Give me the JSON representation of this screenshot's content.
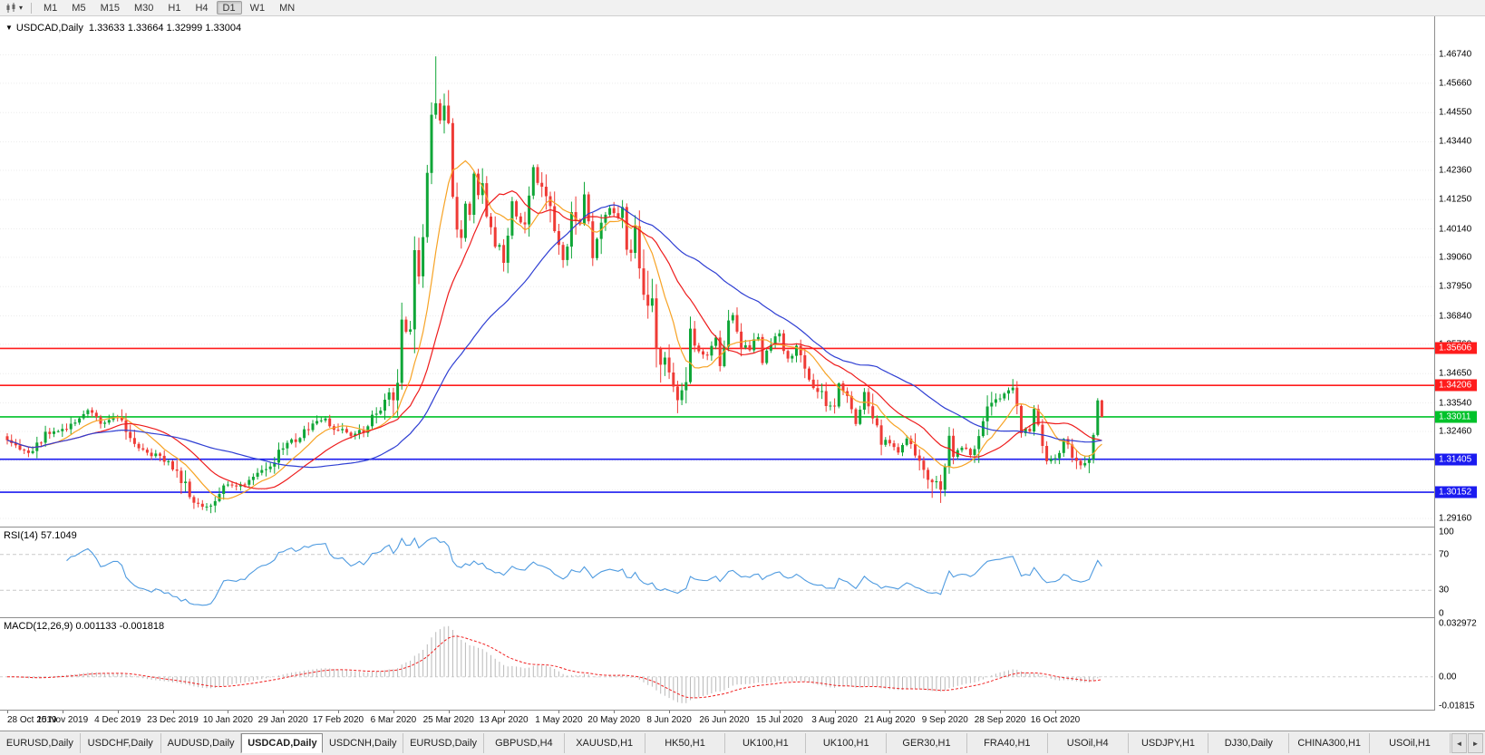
{
  "toolbar": {
    "dropdown_arrow": "▾",
    "timeframes": [
      "M1",
      "M5",
      "M15",
      "M30",
      "H1",
      "H4",
      "D1",
      "W1",
      "MN"
    ],
    "active_timeframe": "D1"
  },
  "chart_header": {
    "collapse_icon": "▼",
    "symbol": "USDCAD,Daily",
    "ohlc": "1.33633 1.33664 1.32999 1.33004"
  },
  "price_axis_labels": [
    "1.46740",
    "1.45660",
    "1.44550",
    "1.43440",
    "1.42360",
    "1.41250",
    "1.40140",
    "1.39060",
    "1.37950",
    "1.36840",
    "1.35760",
    "1.34650",
    "1.33540",
    "1.32460",
    "1.31350",
    "1.30240",
    "1.29160"
  ],
  "date_axis_labels": [
    "28 Oct 2019",
    "15 Nov 2019",
    "4 Dec 2019",
    "23 Dec 2019",
    "10 Jan 2020",
    "29 Jan 2020",
    "17 Feb 2020",
    "6 Mar 2020",
    "25 Mar 2020",
    "13 Apr 2020",
    "1 May 2020",
    "20 May 2020",
    "8 Jun 2020",
    "26 Jun 2020",
    "15 Jul 2020",
    "3 Aug 2020",
    "21 Aug 2020",
    "9 Sep 2020",
    "28 Sep 2020",
    "16 Oct 2020"
  ],
  "indicators": {
    "rsi": {
      "label": "RSI(14) 57.1049",
      "levels": [
        "100",
        "70",
        "30",
        "0"
      ]
    },
    "macd": {
      "label": "MACD(12,26,9) 0.001133 -0.001818",
      "axis_labels": [
        "0.032972",
        "0.00",
        "-0.01815"
      ]
    }
  },
  "tabs": {
    "scroll_left": "◄",
    "scroll_right": "►",
    "items": [
      {
        "label": "EURUSD,Daily",
        "active": false
      },
      {
        "label": "USDCHF,Daily",
        "active": false
      },
      {
        "label": "AUDUSD,Daily",
        "active": false
      },
      {
        "label": "USDCAD,Daily",
        "active": true
      },
      {
        "label": "USDCNH,Daily",
        "active": false
      },
      {
        "label": "EURUSD,Daily",
        "active": false
      },
      {
        "label": "GBPUSD,H4",
        "active": false
      },
      {
        "label": "XAUUSD,H1",
        "active": false
      },
      {
        "label": "HK50,H1",
        "active": false
      },
      {
        "label": "UK100,H1",
        "active": false
      },
      {
        "label": "UK100,H1",
        "active": false
      },
      {
        "label": "GER30,H1",
        "active": false
      },
      {
        "label": "FRA40,H1",
        "active": false
      },
      {
        "label": "USOil,H4",
        "active": false
      },
      {
        "label": "USDJPY,H1",
        "active": false
      },
      {
        "label": "DJ30,Daily",
        "active": false
      },
      {
        "label": "CHINA300,H1",
        "active": false
      },
      {
        "label": "USOil,H1",
        "active": false
      }
    ]
  },
  "chart_data": {
    "type": "candlestick",
    "symbol": "USDCAD",
    "timeframe": "Daily",
    "bars": 259,
    "last_ohlc": {
      "open": 1.33633,
      "high": 1.33664,
      "low": 1.32999,
      "close": 1.33004
    },
    "price_range": {
      "top": 1.482,
      "bottom": 1.2885
    },
    "candle_up_color": "#0fa637",
    "candle_down_color": "#ef3b36",
    "horizontal_lines": [
      {
        "price": 1.35606,
        "label": "1.35606",
        "color": "#ff1c1c"
      },
      {
        "price": 1.34206,
        "label": "1.34206",
        "color": "#ff1c1c"
      },
      {
        "price": 1.33011,
        "label": "1.33011",
        "color": "#00c22a"
      },
      {
        "price": 1.31405,
        "label": "1.31405",
        "color": "#1b1bf0"
      },
      {
        "price": 1.30152,
        "label": "1.30152",
        "color": "#1b1bf0"
      }
    ],
    "moving_averages": [
      {
        "period": 10,
        "color": "#f7a325"
      },
      {
        "period": 21,
        "color": "#ee1c1c"
      },
      {
        "period": 45,
        "color": "#2f3fd3"
      }
    ],
    "rsi": {
      "period": 14,
      "value": 57.1049,
      "levels": [
        70,
        30
      ],
      "color": "#4f9be0",
      "level_color": "#c9c9c9"
    },
    "macd": {
      "fast": 12,
      "slow": 26,
      "signal": 9,
      "value": 0.001133,
      "signal_value": -0.001818,
      "plot_max": 0.0365,
      "plot_min": -0.0205,
      "hist_color": "#b9b9b9",
      "signal_color": "#f02020"
    },
    "forced_wicks": [
      {
        "index": 101,
        "type": "high",
        "price": 1.4668
      },
      {
        "index": 46,
        "type": "low",
        "price": 1.2948
      },
      {
        "index": 158,
        "type": "low",
        "price": 1.3315
      },
      {
        "index": 218,
        "type": "low",
        "price": 1.2994
      }
    ],
    "close_waypoints": [
      [
        0,
        1.3215
      ],
      [
        3,
        1.3185
      ],
      [
        5,
        1.316
      ],
      [
        9,
        1.3235
      ],
      [
        13,
        1.325
      ],
      [
        17,
        1.33
      ],
      [
        19,
        1.332
      ],
      [
        22,
        1.328
      ],
      [
        26,
        1.3305
      ],
      [
        28,
        1.324
      ],
      [
        30,
        1.318
      ],
      [
        33,
        1.3165
      ],
      [
        36,
        1.315
      ],
      [
        40,
        1.311
      ],
      [
        43,
        1.299
      ],
      [
        46,
        1.2955
      ],
      [
        49,
        1.299
      ],
      [
        52,
        1.3045
      ],
      [
        56,
        1.304
      ],
      [
        60,
        1.309
      ],
      [
        63,
        1.314
      ],
      [
        66,
        1.32
      ],
      [
        69,
        1.3225
      ],
      [
        72,
        1.327
      ],
      [
        75,
        1.329
      ],
      [
        78,
        1.325
      ],
      [
        81,
        1.323
      ],
      [
        84,
        1.3255
      ],
      [
        86,
        1.3305
      ],
      [
        88,
        1.334
      ],
      [
        90,
        1.34
      ],
      [
        92,
        1.342
      ],
      [
        93,
        1.37
      ],
      [
        94,
        1.364
      ],
      [
        95,
        1.3625
      ],
      [
        96,
        1.399
      ],
      [
        97,
        1.3805
      ],
      [
        98,
        1.395
      ],
      [
        99,
        1.424
      ],
      [
        100,
        1.449
      ],
      [
        101,
        1.451
      ],
      [
        102,
        1.442
      ],
      [
        103,
        1.4505
      ],
      [
        104,
        1.448
      ],
      [
        105,
        1.418
      ],
      [
        106,
        1.4035
      ],
      [
        107,
        1.3985
      ],
      [
        108,
        1.409
      ],
      [
        109,
        1.406
      ],
      [
        110,
        1.421
      ],
      [
        111,
        1.4135
      ],
      [
        112,
        1.4205
      ],
      [
        113,
        1.4085
      ],
      [
        114,
        1.4012
      ],
      [
        116,
        1.396
      ],
      [
        117,
        1.3875
      ],
      [
        119,
        1.4095
      ],
      [
        121,
        1.4045
      ],
      [
        122,
        1.4005
      ],
      [
        124,
        1.4215
      ],
      [
        126,
        1.416
      ],
      [
        128,
        1.4095
      ],
      [
        130,
        1.3955
      ],
      [
        131,
        1.388
      ],
      [
        132,
        1.3945
      ],
      [
        133,
        1.409
      ],
      [
        135,
        1.4025
      ],
      [
        136,
        1.4145
      ],
      [
        138,
        1.3925
      ],
      [
        140,
        1.404
      ],
      [
        142,
        1.41
      ],
      [
        144,
        1.403
      ],
      [
        145,
        1.411
      ],
      [
        146,
        1.3925
      ],
      [
        148,
        1.3995
      ],
      [
        150,
        1.378
      ],
      [
        152,
        1.377
      ],
      [
        153,
        1.3565
      ],
      [
        155,
        1.3495
      ],
      [
        157,
        1.342
      ],
      [
        158,
        1.3375
      ],
      [
        160,
        1.341
      ],
      [
        161,
        1.3625
      ],
      [
        163,
        1.354
      ],
      [
        165,
        1.3545
      ],
      [
        167,
        1.3605
      ],
      [
        168,
        1.351
      ],
      [
        170,
        1.364
      ],
      [
        171,
        1.3685
      ],
      [
        173,
        1.3575
      ],
      [
        175,
        1.355
      ],
      [
        177,
        1.361
      ],
      [
        178,
        1.351
      ],
      [
        180,
        1.3595
      ],
      [
        182,
        1.3615
      ],
      [
        184,
        1.351
      ],
      [
        186,
        1.358
      ],
      [
        188,
        1.3455
      ],
      [
        190,
        1.341
      ],
      [
        192,
        1.3415
      ],
      [
        193,
        1.335
      ],
      [
        195,
        1.3335
      ],
      [
        196,
        1.3425
      ],
      [
        198,
        1.3385
      ],
      [
        200,
        1.327
      ],
      [
        202,
        1.3385
      ],
      [
        204,
        1.33
      ],
      [
        206,
        1.322
      ],
      [
        208,
        1.3195
      ],
      [
        210,
        1.3175
      ],
      [
        212,
        1.322
      ],
      [
        214,
        1.3165
      ],
      [
        216,
        1.3095
      ],
      [
        218,
        1.304
      ],
      [
        220,
        1.305
      ],
      [
        221,
        1.3125
      ],
      [
        222,
        1.3225
      ],
      [
        223,
        1.316
      ],
      [
        225,
        1.3185
      ],
      [
        227,
        1.316
      ],
      [
        229,
        1.32
      ],
      [
        231,
        1.331
      ],
      [
        233,
        1.338
      ],
      [
        235,
        1.3385
      ],
      [
        237,
        1.3385
      ],
      [
        238,
        1.332
      ],
      [
        239,
        1.3265
      ],
      [
        241,
        1.325
      ],
      [
        242,
        1.3325
      ],
      [
        244,
        1.3195
      ],
      [
        245,
        1.312
      ],
      [
        247,
        1.3145
      ],
      [
        249,
        1.3215
      ],
      [
        250,
        1.319
      ],
      [
        252,
        1.3125
      ],
      [
        254,
        1.312
      ],
      [
        255,
        1.314
      ],
      [
        256,
        1.3205
      ],
      [
        257,
        1.33633
      ],
      [
        258,
        1.33004
      ]
    ]
  }
}
